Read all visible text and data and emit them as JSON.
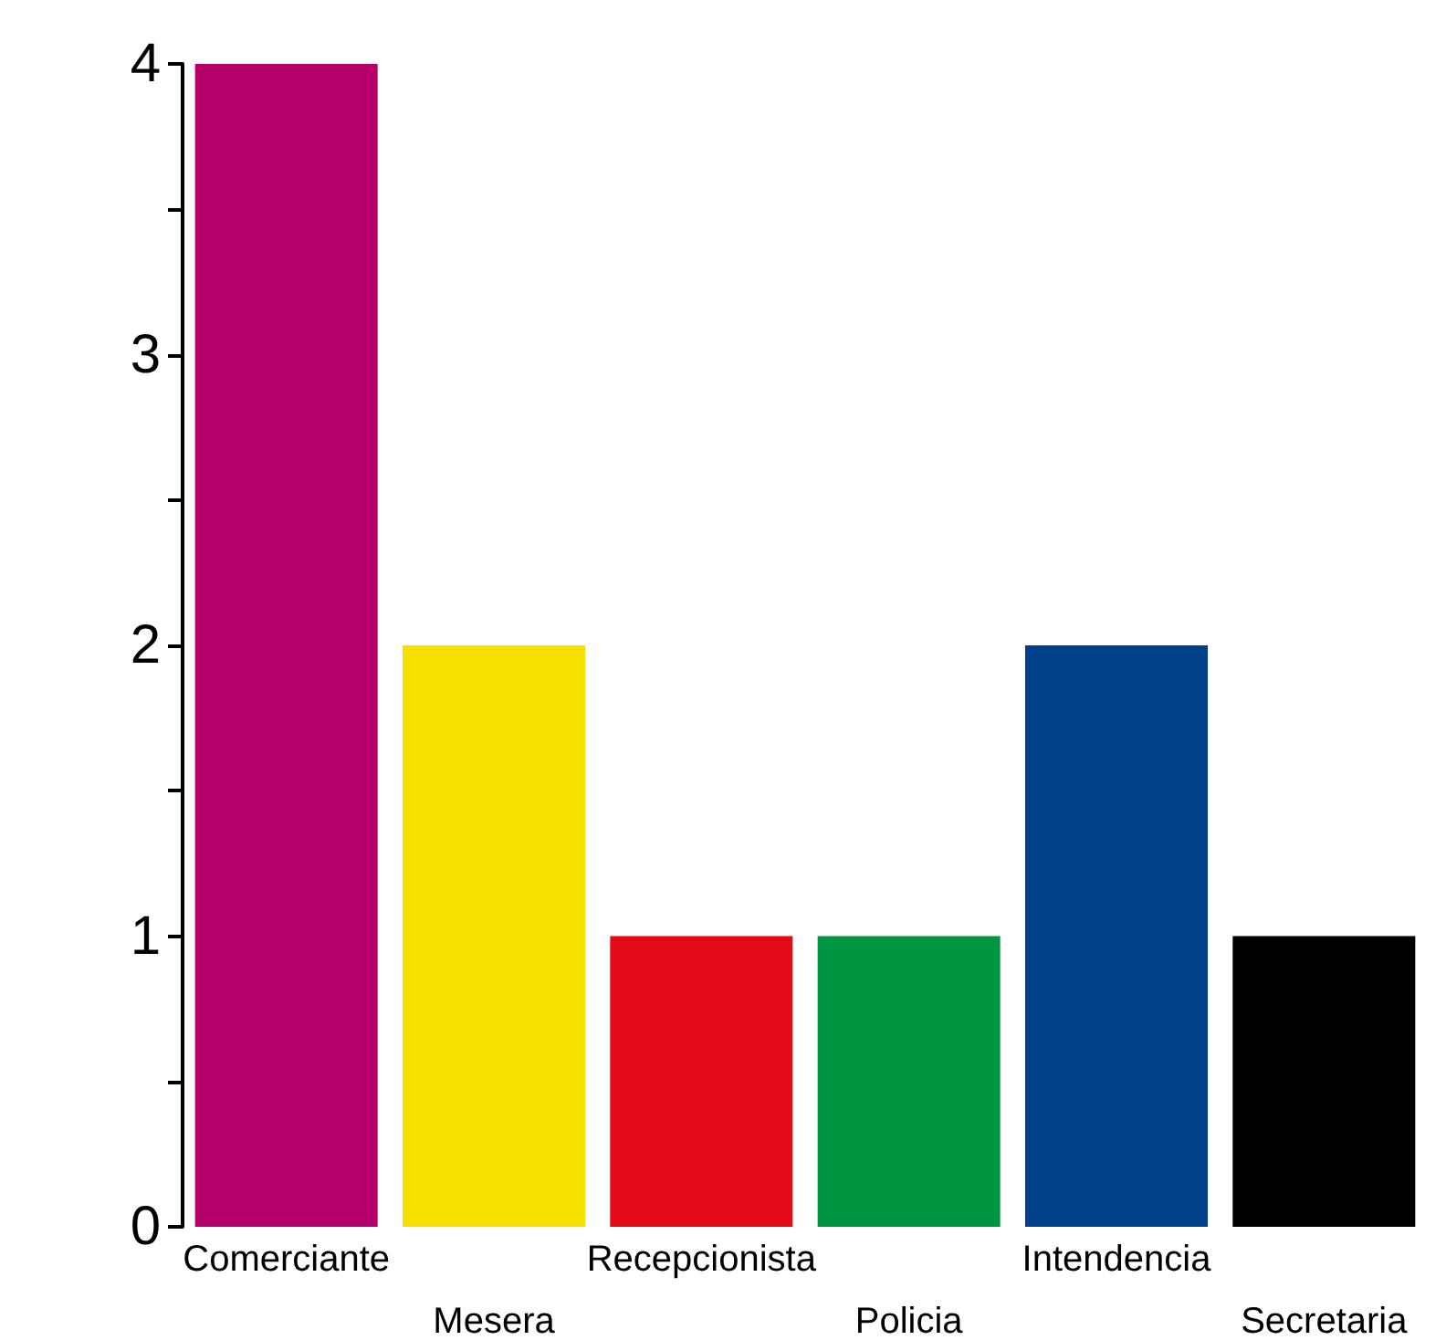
{
  "chart_data": {
    "type": "bar",
    "categories": [
      "Comerciante",
      "Mesera",
      "Recepcionista",
      "Policia",
      "Intendencia",
      "Secretaria"
    ],
    "values": [
      4,
      2,
      1,
      1,
      2,
      1
    ],
    "colors": [
      "#b5006b",
      "#f5e000",
      "#e30b17",
      "#009540",
      "#003f8a",
      "#000000"
    ],
    "ylim": [
      0,
      4
    ],
    "yticks": [
      0,
      {
        "value": 0.5,
        "label": null
      },
      1,
      {
        "value": 1.5,
        "label": null
      },
      2,
      {
        "value": 2.5,
        "label": null
      },
      3,
      {
        "value": 3.5,
        "label": null
      },
      4
    ],
    "grid": false
  }
}
